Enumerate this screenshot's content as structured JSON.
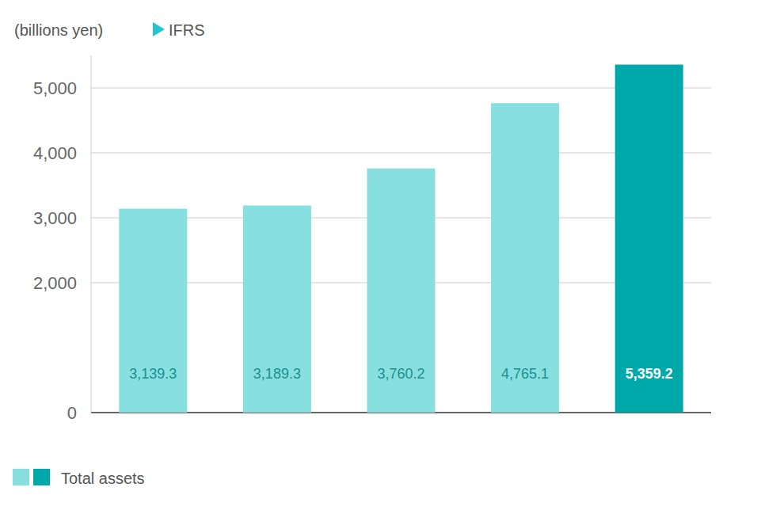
{
  "chart_data": {
    "type": "bar",
    "y_label": "(billions yen)",
    "annotations": [
      "IFRS"
    ],
    "categories": [
      null,
      null,
      null,
      null,
      null
    ],
    "series": [
      {
        "name": "Total assets",
        "colors": [
          "#88dfdf",
          "#88dfdf",
          "#88dfdf",
          "#88dfdf",
          "#00a9a9"
        ],
        "values": [
          3139.3,
          3189.3,
          3760.2,
          4765.1,
          5359.2
        ],
        "value_labels": [
          "3,139.3",
          "3,189.3",
          "3,760.2",
          "4,765.1",
          "5,359.2"
        ]
      }
    ],
    "ylim": [
      0,
      5500
    ],
    "yticks": [
      0,
      {
        "value": 2000,
        "label": "2,000"
      },
      {
        "value": 3000,
        "label": "3,000"
      },
      {
        "value": 4000,
        "label": "4,000"
      },
      {
        "value": 5000,
        "label": "5,000"
      }
    ],
    "grid": true,
    "data_labels": true,
    "legend": "bottom-left"
  }
}
